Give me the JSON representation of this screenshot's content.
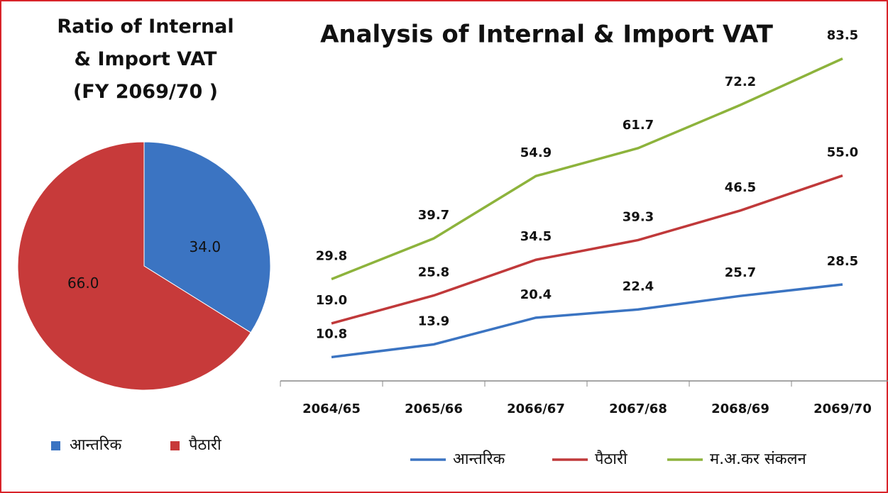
{
  "chart_data": [
    {
      "type": "pie",
      "title": "Ratio of Internal & Import VAT (FY 2069/70 )",
      "categories": [
        "आन्तरिक",
        "पैठारी"
      ],
      "values": [
        34.0,
        66.0
      ],
      "value_labels": [
        "34.0",
        "66.0"
      ],
      "colors": [
        "#3b74c2",
        "#c73a3a"
      ],
      "legend": "bottom"
    },
    {
      "type": "line",
      "title": "Analysis of Internal & Import VAT",
      "categories": [
        "2064/65",
        "2065/66",
        "2066/67",
        "2067/68",
        "2068/69",
        "2069/70"
      ],
      "ylim": [
        5,
        90
      ],
      "legend": "bottom",
      "series": [
        {
          "name": "आन्तरिक",
          "color": "#3b74c2",
          "values": [
            10.8,
            13.9,
            20.4,
            22.4,
            25.7,
            28.5
          ],
          "value_labels": [
            "10.8",
            "13.9",
            "20.4",
            "22.4",
            "25.7",
            "28.5"
          ]
        },
        {
          "name": "पैठारी",
          "color": "#c0393a",
          "values": [
            19.0,
            25.8,
            34.5,
            39.3,
            46.5,
            55.0
          ],
          "value_labels": [
            "19.0",
            "25.8",
            "34.5",
            "39.3",
            "46.5",
            "55.0"
          ]
        },
        {
          "name": "म.अ.कर संकलन",
          "color": "#8db33c",
          "values": [
            29.8,
            39.7,
            54.9,
            61.7,
            72.2,
            83.5
          ],
          "value_labels": [
            "29.8",
            "39.7",
            "54.9",
            "61.7",
            "72.2",
            "83.5"
          ]
        }
      ]
    }
  ]
}
